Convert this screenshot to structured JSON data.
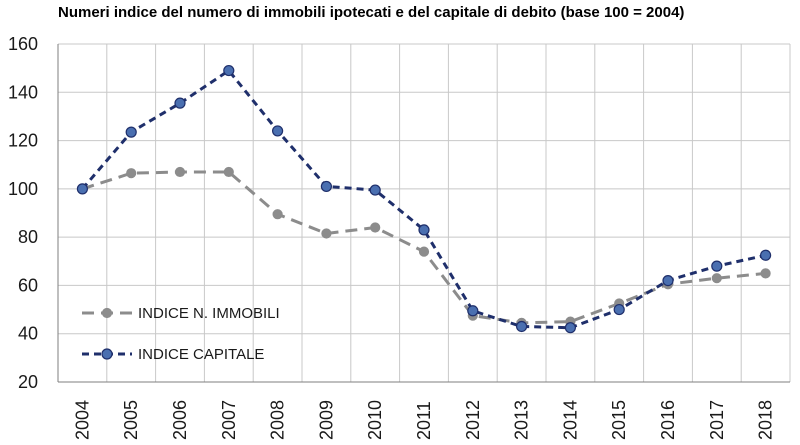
{
  "chart_data": {
    "type": "line",
    "title": "Numeri indice del numero di immobili ipotecati e del capitale di debito (base 100 = 2004)",
    "xlabel": "",
    "ylabel": "",
    "ylim": [
      20,
      160
    ],
    "yticks": [
      20,
      40,
      60,
      80,
      100,
      120,
      140,
      160
    ],
    "grid": "horizontal and vertical",
    "legend_position": "bottom-left",
    "categories": [
      "2004",
      "2005",
      "2006",
      "2007",
      "2008",
      "2009",
      "2010",
      "2011",
      "2012",
      "2013",
      "2014",
      "2015",
      "2016",
      "2017",
      "2018"
    ],
    "series": [
      {
        "name": "INDICE N. IMMOBILI",
        "color": "#8c8c8c",
        "values": [
          100,
          106.5,
          107,
          107,
          89.5,
          81.5,
          84,
          74,
          47.5,
          44.5,
          45,
          52.5,
          60.5,
          63,
          65
        ]
      },
      {
        "name": "INDICE CAPITALE",
        "color": "#1f2f6b",
        "values": [
          100,
          123.5,
          135.5,
          149,
          124,
          101,
          99.5,
          83,
          49.5,
          43,
          42.5,
          50,
          62,
          68,
          72.5
        ]
      }
    ]
  }
}
